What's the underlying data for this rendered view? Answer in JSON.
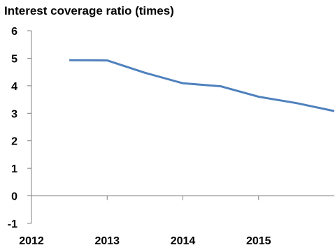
{
  "chart_data": {
    "type": "line",
    "title": "Interest coverage ratio (times)",
    "xlabel": "",
    "ylabel": "",
    "x_tick_labels": [
      "2012",
      "2013",
      "2014",
      "2015"
    ],
    "x_tick_values": [
      2012,
      2013,
      2014,
      2015
    ],
    "xlim": [
      2012,
      2016
    ],
    "y_tick_labels": [
      "-1",
      "0",
      "1",
      "2",
      "3",
      "4",
      "5",
      "6"
    ],
    "y_tick_values": [
      -1,
      0,
      1,
      2,
      3,
      4,
      5,
      6
    ],
    "ylim": [
      -1,
      6
    ],
    "grid": false,
    "legend": "none",
    "series": [
      {
        "color": "#4F81BD",
        "x": [
          2012.5,
          2013.0,
          2013.5,
          2014.0,
          2014.5,
          2015.0,
          2015.5,
          2016.0
        ],
        "values": [
          4.93,
          4.92,
          4.47,
          4.09,
          3.98,
          3.6,
          3.37,
          3.08
        ]
      }
    ]
  }
}
